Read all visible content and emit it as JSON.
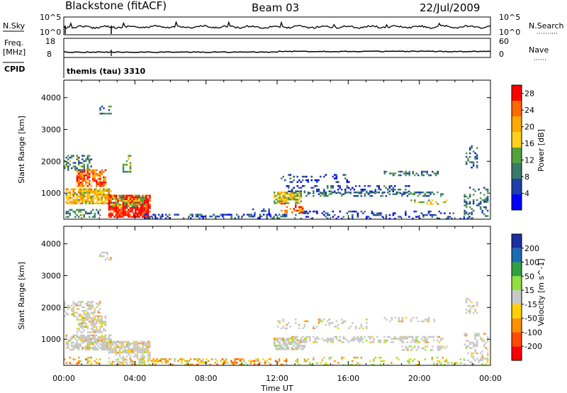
{
  "header": {
    "station": "Blackstone (fitACF)",
    "beam": "Beam 03",
    "date": "22/Jul/2009"
  },
  "panels": {
    "nsky": {
      "label": "N.Sky",
      "ticks": [
        "10^5",
        "10^0"
      ]
    },
    "nsearch": {
      "label": "N.Search",
      "ticks": [
        "10^5",
        "10^0"
      ]
    },
    "freq": {
      "label_top": "Freq.",
      "label_bottom": "[MHz]",
      "ticks": [
        "18",
        "8"
      ]
    },
    "nave": {
      "label": "Nave",
      "ticks": [
        "60",
        "0"
      ]
    },
    "cpid": {
      "label": "CPID",
      "text": "themis (tau) 3310"
    }
  },
  "colors": {
    "power_scale": [
      "#0000ff",
      "#1f3fa8",
      "#3a7a68",
      "#55a040",
      "#ffd11a",
      "#ffaa00",
      "#ff6a00",
      "#ff0000"
    ],
    "velocity_scale": [
      "#ff0000",
      "#ff4a00",
      "#ff9000",
      "#ffd200",
      "#c8c8c8",
      "#8fe040",
      "#30a040",
      "#1a6bb0",
      "#1a2fa0"
    ]
  },
  "chart_data": [
    {
      "type": "heatmap",
      "name": "power",
      "xlabel": "Time UT",
      "ylabel": "Slant Range [km]",
      "xticks": [
        "00:00",
        "04:00",
        "08:00",
        "12:00",
        "16:00",
        "20:00",
        "00:00"
      ],
      "xlim_hours": [
        0,
        24
      ],
      "yticks": [
        1000,
        2000,
        3000,
        4000
      ],
      "ylim_km": [
        180,
        4550
      ],
      "colorbar": {
        "label": "Power [dB]",
        "ticks": [
          "28",
          "24",
          "20",
          "16",
          "12",
          "8",
          "4"
        ],
        "range": [
          0,
          30
        ]
      },
      "regions": [
        {
          "t0": 0.1,
          "t1": 2.6,
          "r0": 700,
          "r1": 1150,
          "level": 0.62,
          "density": 0.8
        },
        {
          "t0": 0.7,
          "t1": 2.3,
          "r0": 1200,
          "r1": 1750,
          "level": 0.8,
          "density": 0.75
        },
        {
          "t0": 0.0,
          "t1": 1.5,
          "r0": 1750,
          "r1": 2200,
          "level": 0.35,
          "density": 0.45
        },
        {
          "t0": 2.0,
          "t1": 2.6,
          "r0": 3500,
          "r1": 3750,
          "level": 0.3,
          "density": 0.45
        },
        {
          "t0": 2.5,
          "t1": 4.8,
          "r0": 250,
          "r1": 950,
          "level": 0.95,
          "density": 0.85
        },
        {
          "t0": 2.7,
          "t1": 4.5,
          "r0": 600,
          "r1": 950,
          "level": 0.5,
          "density": 0.6
        },
        {
          "t0": 3.3,
          "t1": 3.7,
          "r0": 1650,
          "r1": 2200,
          "level": 0.4,
          "density": 0.4
        },
        {
          "t0": 0.0,
          "t1": 2.0,
          "r0": 250,
          "r1": 500,
          "level": 0.35,
          "density": 0.45
        },
        {
          "t0": 4.5,
          "t1": 12.5,
          "r0": 220,
          "r1": 350,
          "level": 0.18,
          "density": 0.4
        },
        {
          "t0": 10.5,
          "t1": 11.5,
          "r0": 350,
          "r1": 520,
          "level": 0.2,
          "density": 0.45
        },
        {
          "t0": 11.8,
          "t1": 13.3,
          "r0": 700,
          "r1": 1050,
          "level": 0.55,
          "density": 0.7
        },
        {
          "t0": 12.2,
          "t1": 13.4,
          "r0": 420,
          "r1": 700,
          "level": 0.8,
          "density": 0.4
        },
        {
          "t0": 12.5,
          "t1": 19.5,
          "r0": 1000,
          "r1": 1250,
          "level": 0.22,
          "density": 0.35
        },
        {
          "t0": 13.0,
          "t1": 21.3,
          "r0": 920,
          "r1": 1050,
          "level": 0.3,
          "density": 0.4
        },
        {
          "t0": 12.0,
          "t1": 16.0,
          "r0": 1350,
          "r1": 1600,
          "level": 0.15,
          "density": 0.2
        },
        {
          "t0": 13.0,
          "t1": 23.0,
          "r0": 220,
          "r1": 450,
          "level": 0.18,
          "density": 0.25
        },
        {
          "t0": 18.0,
          "t1": 21.0,
          "r0": 1550,
          "r1": 1700,
          "level": 0.3,
          "density": 0.4
        },
        {
          "t0": 19.5,
          "t1": 21.5,
          "r0": 650,
          "r1": 800,
          "level": 0.5,
          "density": 0.4
        },
        {
          "t0": 22.5,
          "t1": 23.8,
          "r0": 250,
          "r1": 1200,
          "level": 0.3,
          "density": 0.3
        },
        {
          "t0": 22.6,
          "t1": 23.2,
          "r0": 1800,
          "r1": 2500,
          "level": 0.25,
          "density": 0.3
        }
      ]
    },
    {
      "type": "heatmap",
      "name": "velocity",
      "xlabel": "Time UT",
      "ylabel": "Slant Range [km]",
      "xticks": [
        "00:00",
        "04:00",
        "08:00",
        "12:00",
        "16:00",
        "20:00",
        "00:00"
      ],
      "xlim_hours": [
        0,
        24
      ],
      "yticks": [
        1000,
        2000,
        3000,
        4000
      ],
      "ylim_km": [
        180,
        4550
      ],
      "colorbar": {
        "label": "Velocity [m s^-1]",
        "ticks": [
          "200",
          "100",
          "50",
          "15",
          "-15",
          "-50",
          "-100",
          "-200"
        ],
        "range": [
          -250,
          250
        ]
      },
      "regions": [
        {
          "t0": 0.1,
          "t1": 2.6,
          "r0": 700,
          "r1": 1150,
          "mode": "gray",
          "density": 0.75
        },
        {
          "t0": 0.7,
          "t1": 2.3,
          "r0": 1200,
          "r1": 1750,
          "mode": "gray",
          "density": 0.6
        },
        {
          "t0": 0.0,
          "t1": 2.0,
          "r0": 1750,
          "r1": 2200,
          "mode": "gray",
          "density": 0.45
        },
        {
          "t0": 2.0,
          "t1": 2.6,
          "r0": 3500,
          "r1": 3750,
          "mode": "gray",
          "density": 0.45
        },
        {
          "t0": 2.5,
          "t1": 4.8,
          "r0": 600,
          "r1": 950,
          "mode": "gray",
          "density": 0.8
        },
        {
          "t0": 2.5,
          "t1": 4.8,
          "r0": 250,
          "r1": 600,
          "mode": "gray",
          "density": 0.35
        },
        {
          "t0": 3.0,
          "t1": 12.5,
          "r0": 220,
          "r1": 400,
          "mode": "orange",
          "density": 0.45
        },
        {
          "t0": 0.0,
          "t1": 2.0,
          "r0": 220,
          "r1": 450,
          "mode": "orange",
          "density": 0.3
        },
        {
          "t0": 11.8,
          "t1": 13.5,
          "r0": 700,
          "r1": 1050,
          "mode": "gray",
          "density": 0.7
        },
        {
          "t0": 12.5,
          "t1": 21.3,
          "r0": 880,
          "r1": 1100,
          "mode": "gray",
          "density": 0.5
        },
        {
          "t0": 12.0,
          "t1": 17.0,
          "r0": 1350,
          "r1": 1650,
          "mode": "gray",
          "density": 0.2
        },
        {
          "t0": 13.0,
          "t1": 22.5,
          "r0": 220,
          "r1": 450,
          "mode": "green",
          "density": 0.25
        },
        {
          "t0": 18.0,
          "t1": 21.0,
          "r0": 1550,
          "r1": 1700,
          "mode": "gray",
          "density": 0.35
        },
        {
          "t0": 19.0,
          "t1": 21.5,
          "r0": 650,
          "r1": 800,
          "mode": "gray",
          "density": 0.45
        },
        {
          "t0": 22.5,
          "t1": 23.8,
          "r0": 250,
          "r1": 1200,
          "mode": "gray",
          "density": 0.35
        },
        {
          "t0": 22.6,
          "t1": 23.2,
          "r0": 1800,
          "r1": 2300,
          "mode": "gray",
          "density": 0.35
        }
      ]
    }
  ]
}
